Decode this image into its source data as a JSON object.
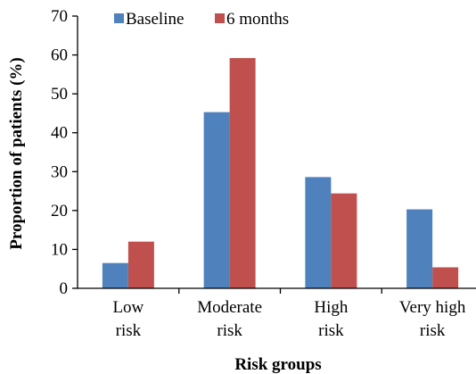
{
  "chart_data": {
    "type": "bar",
    "categories": [
      [
        "Low",
        "risk"
      ],
      [
        "Moderate",
        "risk"
      ],
      [
        "High",
        "risk"
      ],
      [
        "Very high",
        "risk"
      ]
    ],
    "series": [
      {
        "name": "Baseline",
        "values": [
          6.5,
          45.3,
          28.6,
          20.3
        ],
        "color": "#4F81BD"
      },
      {
        "name": "6 months",
        "values": [
          12.0,
          59.2,
          24.4,
          5.4
        ],
        "color": "#C0504D"
      }
    ],
    "xlabel": "Risk groups",
    "ylabel": "Proportion of patients (%)",
    "ylim": [
      0,
      70
    ],
    "yticks": [
      0,
      10,
      20,
      30,
      40,
      50,
      60,
      70
    ],
    "grid": false,
    "legend_position": "top-center"
  }
}
